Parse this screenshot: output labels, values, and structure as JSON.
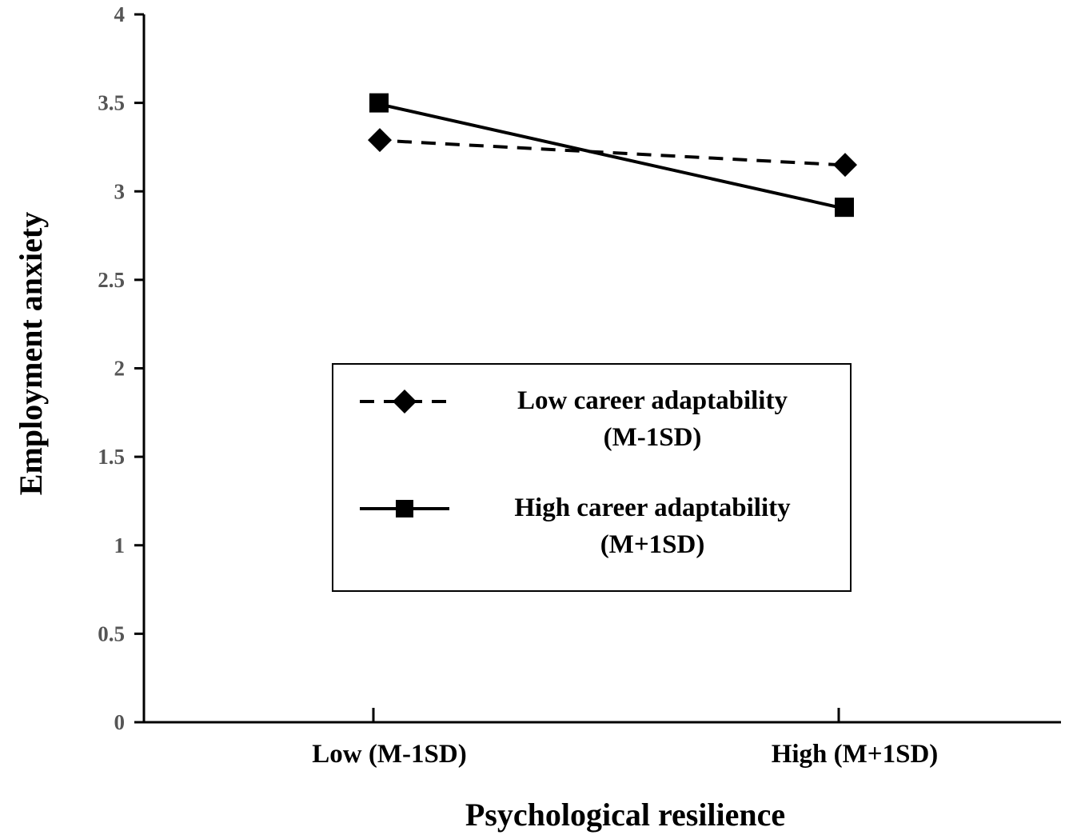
{
  "chart_data": {
    "type": "line",
    "title": "",
    "xlabel": "Psychological resilience",
    "ylabel": "Employment  anxiety",
    "categories": [
      "Low (M-1SD)",
      "High (M+1SD)"
    ],
    "ylim": [
      0,
      4
    ],
    "yticks": [
      "0",
      "0.5",
      "1",
      "1.5",
      "2",
      "2.5",
      "3",
      "3.5",
      "4"
    ],
    "grid": false,
    "legend_position": "center",
    "series": [
      {
        "name_lines": [
          "Low career adaptability",
          "(M-1SD)"
        ],
        "values": [
          3.29,
          3.15
        ],
        "line_style": "dashed",
        "marker": "diamond",
        "color": "#000000"
      },
      {
        "name_lines": [
          "High career adaptability",
          "(M+1SD)"
        ],
        "values": [
          3.5,
          2.91
        ],
        "line_style": "solid",
        "marker": "square",
        "color": "#000000"
      }
    ]
  }
}
